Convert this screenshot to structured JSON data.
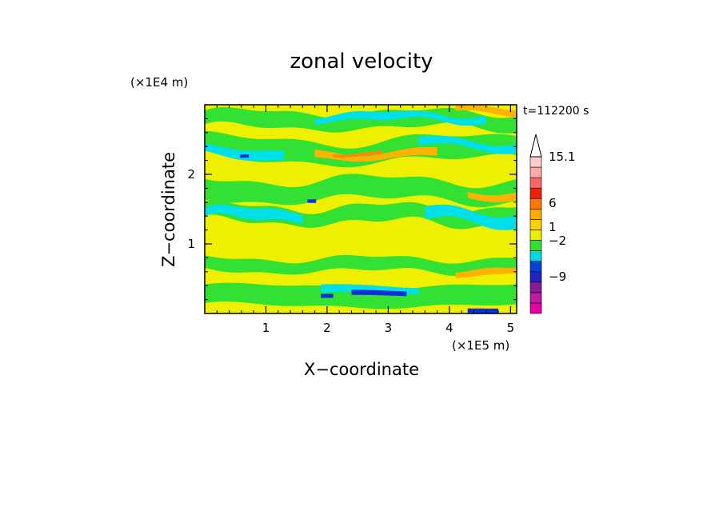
{
  "chart_data": {
    "type": "heatmap",
    "title": "zonal velocity",
    "xlabel": "X−coordinate",
    "ylabel": "Z−coordinate",
    "x_scale_note": "(×1E5 m)",
    "y_scale_note": "(×1E4 m)",
    "time_label": "t=112200 s",
    "xlim": [
      0,
      5.1
    ],
    "ylim": [
      0,
      3
    ],
    "x_ticks": [
      1,
      2,
      3,
      4,
      5
    ],
    "y_ticks": [
      1,
      2
    ],
    "colorbar": {
      "labeled_values": [
        "15.1",
        "6",
        "1",
        "−2",
        "−9"
      ],
      "colors": [
        "#e600a6",
        "#c01aa0",
        "#8a1a9a",
        "#2222c0",
        "#0044dd",
        "#00d8e0",
        "#30e030",
        "#e8f000",
        "#ffd000",
        "#ffaa00",
        "#ff7700",
        "#ee2200",
        "#ff6666",
        "#ffaaaa",
        "#ffcccc"
      ],
      "extend": "max"
    },
    "colors": {
      "yellow": "#eef000",
      "green": "#33e034",
      "cyan": "#00e0e8",
      "orange": "#ffb300",
      "dark_orange": "#ff8800",
      "blue": "#0b2fd8",
      "light_blue": "#2a7cff"
    }
  }
}
